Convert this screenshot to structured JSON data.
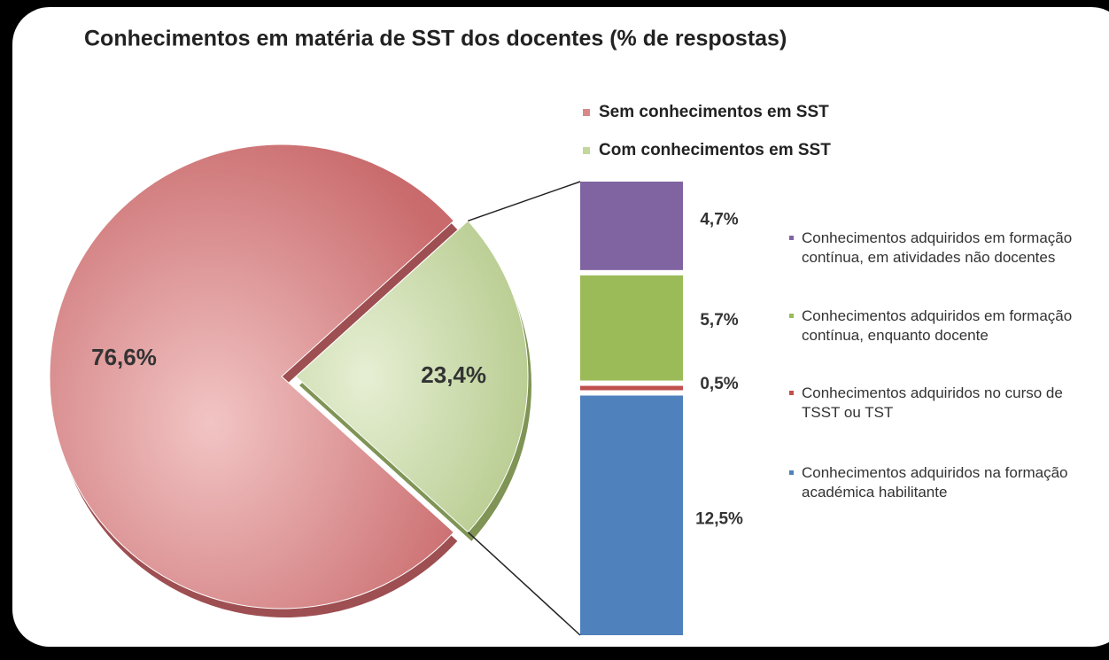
{
  "chart_data": [
    {
      "type": "pie",
      "title": "Conhecimentos em matéria de SST dos docentes  (% de respostas)",
      "categories": [
        "Sem conhecimentos em SST",
        "Com conhecimentos em SST"
      ],
      "values": [
        76.6,
        23.4
      ],
      "value_labels": [
        "76,6%",
        "23,4%"
      ],
      "colors": [
        "#d9898a",
        "#c4d79b"
      ],
      "exploded": 1
    },
    {
      "type": "bar",
      "stacked": true,
      "categories": [
        null
      ],
      "series": [
        {
          "name": "Conhecimentos adquiridos em formação contínua, em atividades não docentes",
          "color": "#8064a2",
          "values": [
            4.7
          ],
          "value_labels": [
            "4,7%"
          ]
        },
        {
          "name": "Conhecimentos adquiridos em formação contínua, enquanto docente",
          "color": "#9bbb59",
          "values": [
            5.7
          ],
          "value_labels": [
            "5,7%"
          ]
        },
        {
          "name": "Conhecimentos adquiridos no curso de TSST ou TST",
          "color": "#c0504d",
          "values": [
            0.5
          ],
          "value_labels": [
            "0,5%"
          ]
        },
        {
          "name": "Conhecimentos adquiridos na formação académica habilitante",
          "color": "#4f81bd",
          "values": [
            12.5
          ],
          "value_labels": [
            "12,5%"
          ]
        }
      ]
    }
  ]
}
